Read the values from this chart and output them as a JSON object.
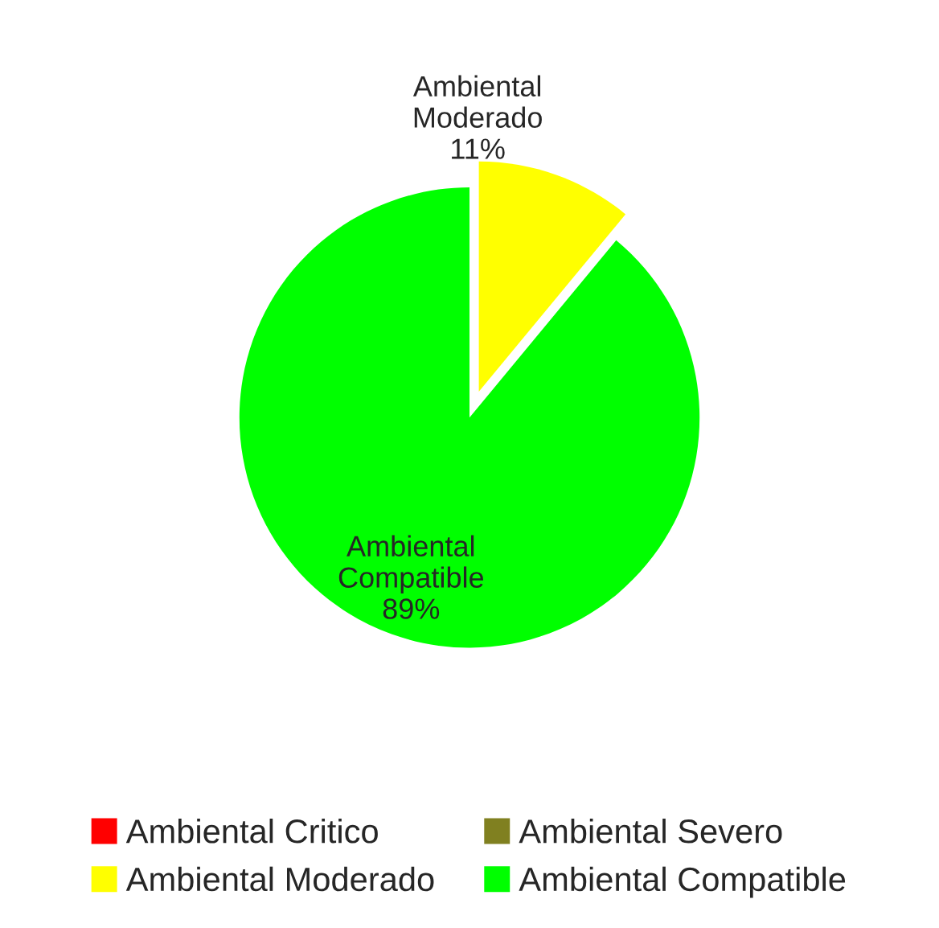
{
  "chart_data": {
    "type": "pie",
    "categories": [
      "Ambiental Critico",
      "Ambiental Severo",
      "Ambiental Moderado",
      "Ambiental Compatible"
    ],
    "values": [
      0,
      0,
      11,
      89
    ],
    "value_labels": [
      null,
      null,
      "11%",
      "89%"
    ],
    "colors": [
      "#ff0000",
      "#808020",
      "#ffff00",
      "#00ff00"
    ],
    "legend": "bottom"
  }
}
